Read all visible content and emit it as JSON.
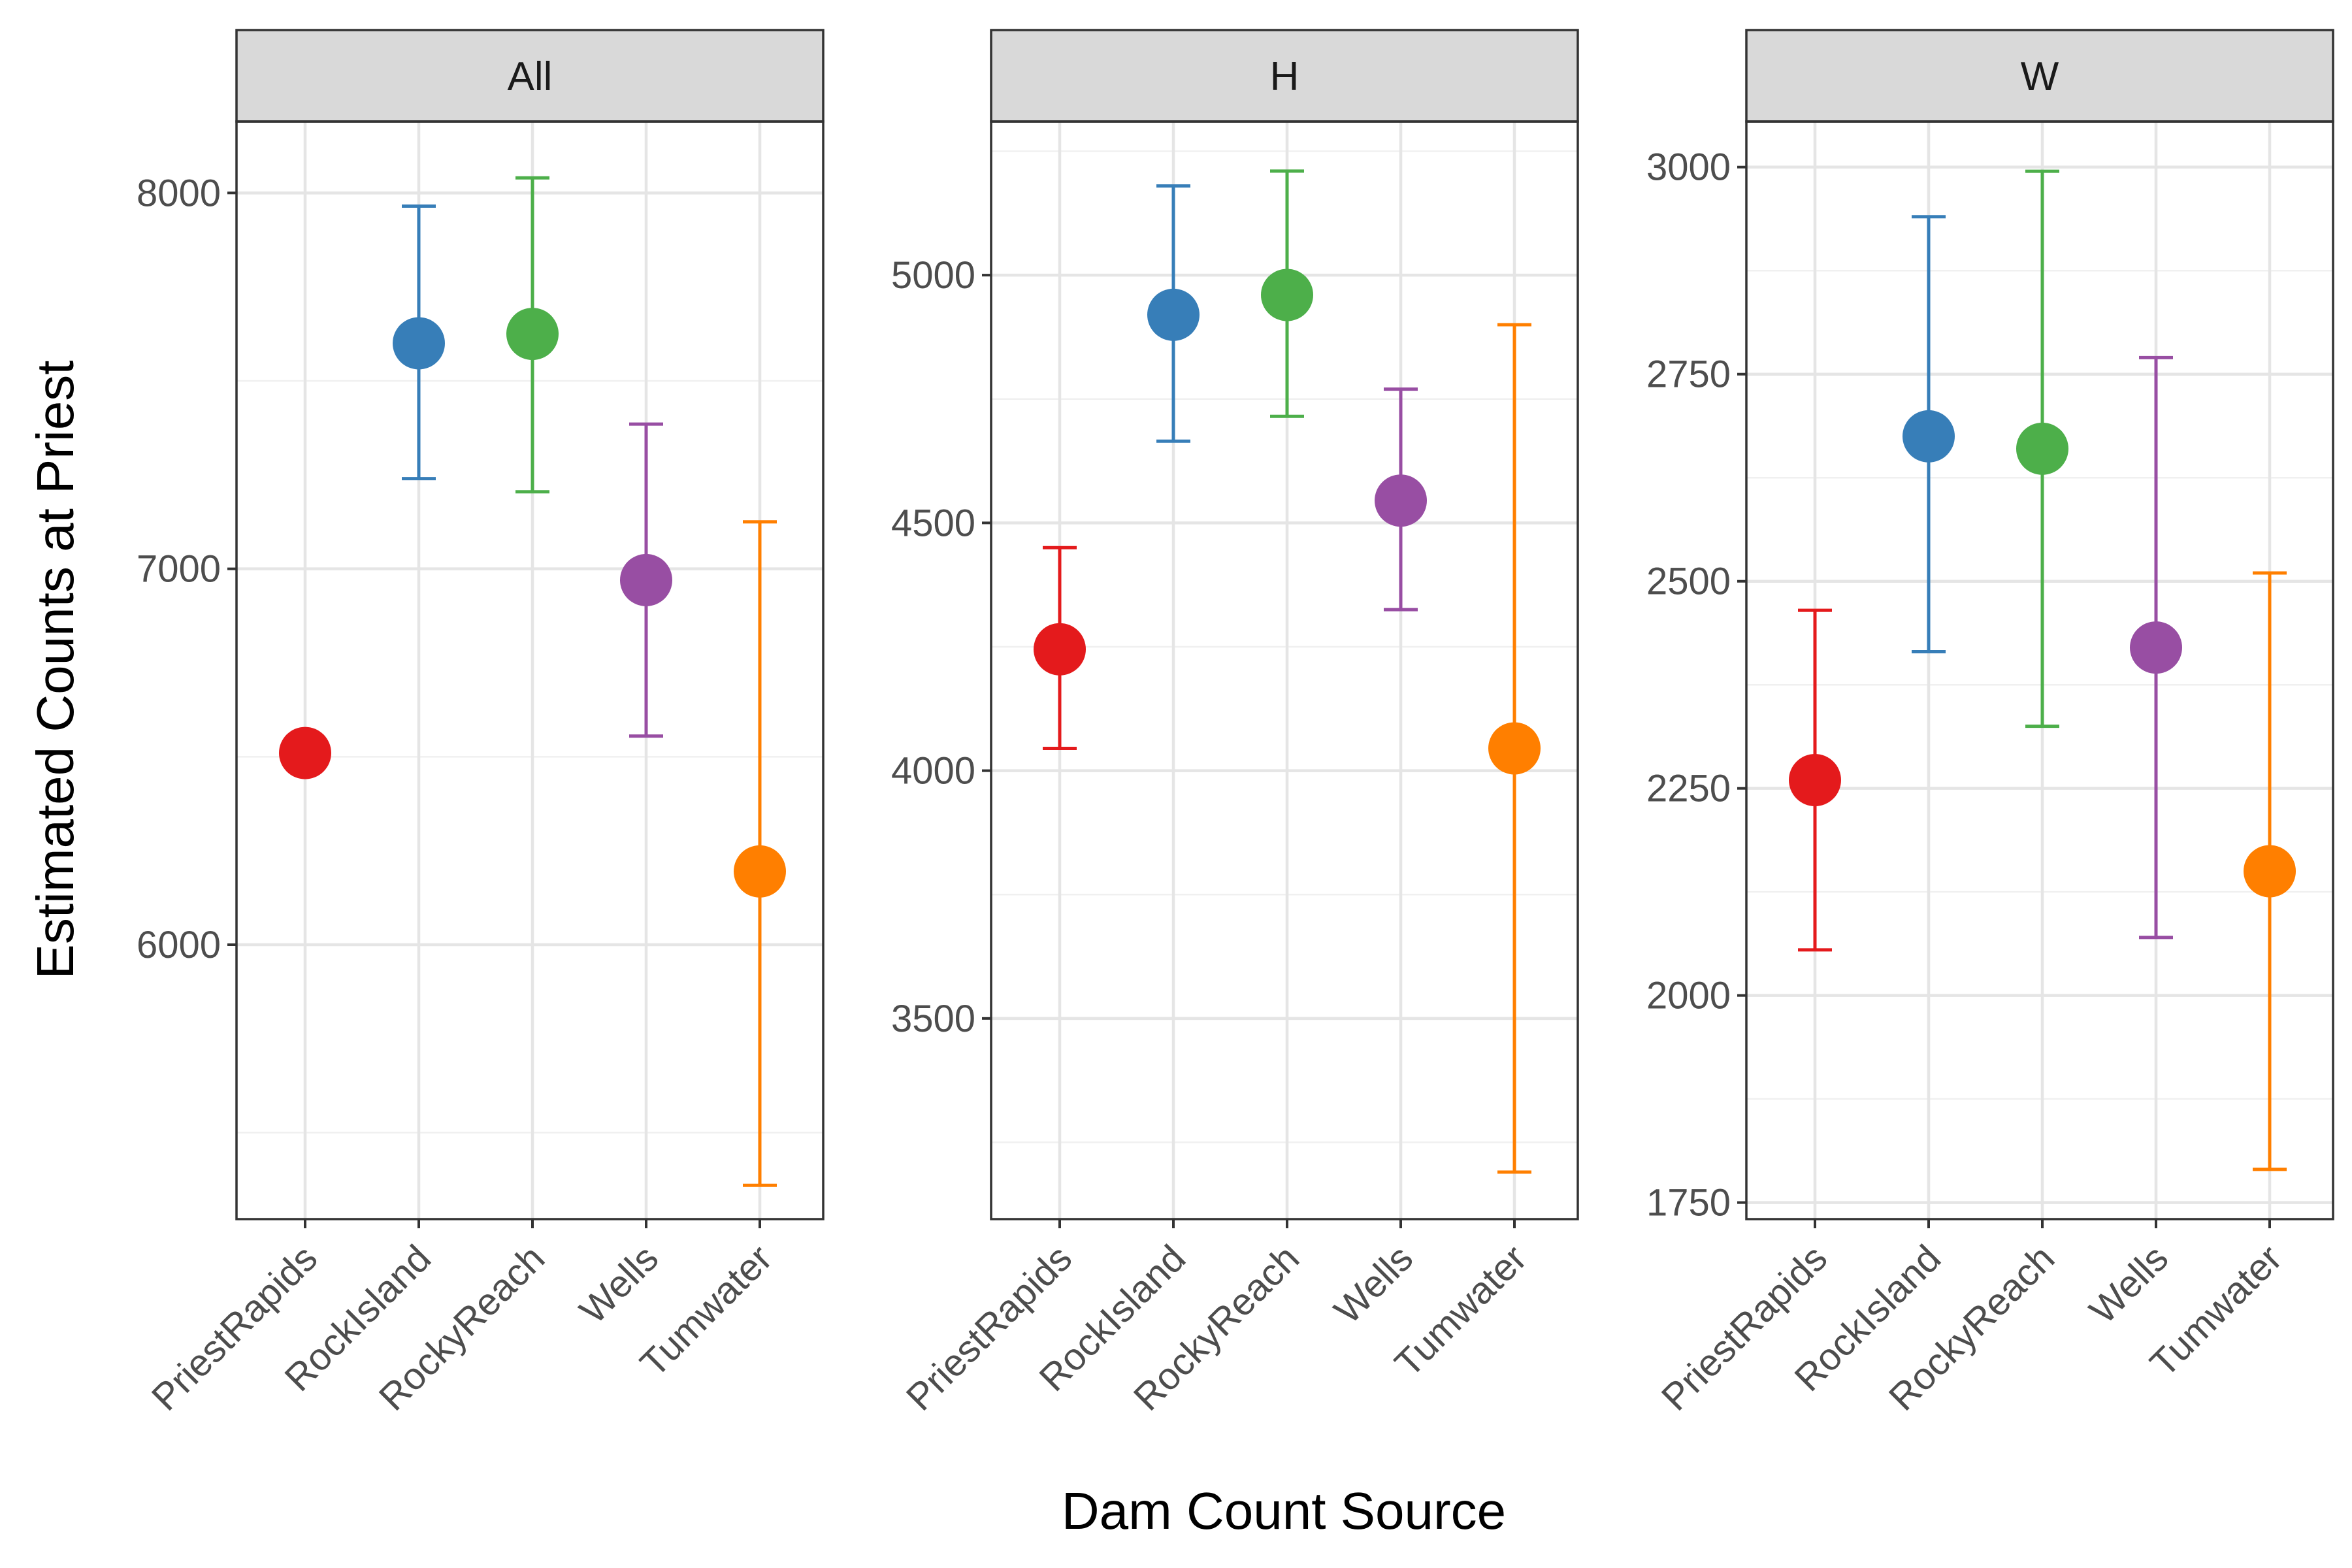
{
  "chart_data": {
    "type": "scatter",
    "subtype": "point-with-errorbars, faceted",
    "xlabel": "Dam Count Source",
    "ylabel": "Estimated Counts at Priest",
    "categories": [
      "PriestRapids",
      "RockIsland",
      "RockyReach",
      "Wells",
      "Tumwater"
    ],
    "colors": {
      "PriestRapids": "#E41A1C",
      "RockIsland": "#377EB8",
      "RockyReach": "#4DAF4A",
      "Wells": "#984EA3",
      "Tumwater": "#FF7F00"
    },
    "grid": true,
    "legend": "none",
    "free_y_scales": true,
    "facets": [
      {
        "name": "All",
        "ylim": [
          5270,
          8190
        ],
        "yticks": [
          6000,
          7000,
          8000
        ],
        "yminor": [
          5500,
          6500,
          7500
        ],
        "points": [
          {
            "category": "PriestRapids",
            "y": 6510,
            "lower": null,
            "upper": null
          },
          {
            "category": "RockIsland",
            "y": 7600,
            "lower": 7240,
            "upper": 7965
          },
          {
            "category": "RockyReach",
            "y": 7625,
            "lower": 7205,
            "upper": 8040
          },
          {
            "category": "Wells",
            "y": 6970,
            "lower": 6555,
            "upper": 7385
          },
          {
            "category": "Tumwater",
            "y": 6195,
            "lower": 5360,
            "upper": 7125
          }
        ]
      },
      {
        "name": "H",
        "ylim": [
          3095,
          5310
        ],
        "yticks": [
          3500,
          4000,
          4500,
          5000
        ],
        "yminor": [
          3250,
          3750,
          4250,
          4750,
          5250
        ],
        "points": [
          {
            "category": "PriestRapids",
            "y": 4245,
            "lower": 4045,
            "upper": 4450
          },
          {
            "category": "RockIsland",
            "y": 4920,
            "lower": 4665,
            "upper": 5180
          },
          {
            "category": "RockyReach",
            "y": 4960,
            "lower": 4715,
            "upper": 5210
          },
          {
            "category": "Wells",
            "y": 4545,
            "lower": 4325,
            "upper": 4770
          },
          {
            "category": "Tumwater",
            "y": 4045,
            "lower": 3190,
            "upper": 4900
          }
        ]
      },
      {
        "name": "W",
        "ylim": [
          1730,
          3055
        ],
        "yticks": [
          1750,
          2000,
          2250,
          2500,
          2750,
          3000
        ],
        "yminor": [
          1875,
          2125,
          2375,
          2625,
          2875
        ],
        "points": [
          {
            "category": "PriestRapids",
            "y": 2260,
            "lower": 2055,
            "upper": 2465
          },
          {
            "category": "RockIsland",
            "y": 2675,
            "lower": 2415,
            "upper": 2940
          },
          {
            "category": "RockyReach",
            "y": 2660,
            "lower": 2325,
            "upper": 2995
          },
          {
            "category": "Wells",
            "y": 2420,
            "lower": 2070,
            "upper": 2770
          },
          {
            "category": "Tumwater",
            "y": 2150,
            "lower": 1790,
            "upper": 2510
          }
        ]
      }
    ]
  }
}
